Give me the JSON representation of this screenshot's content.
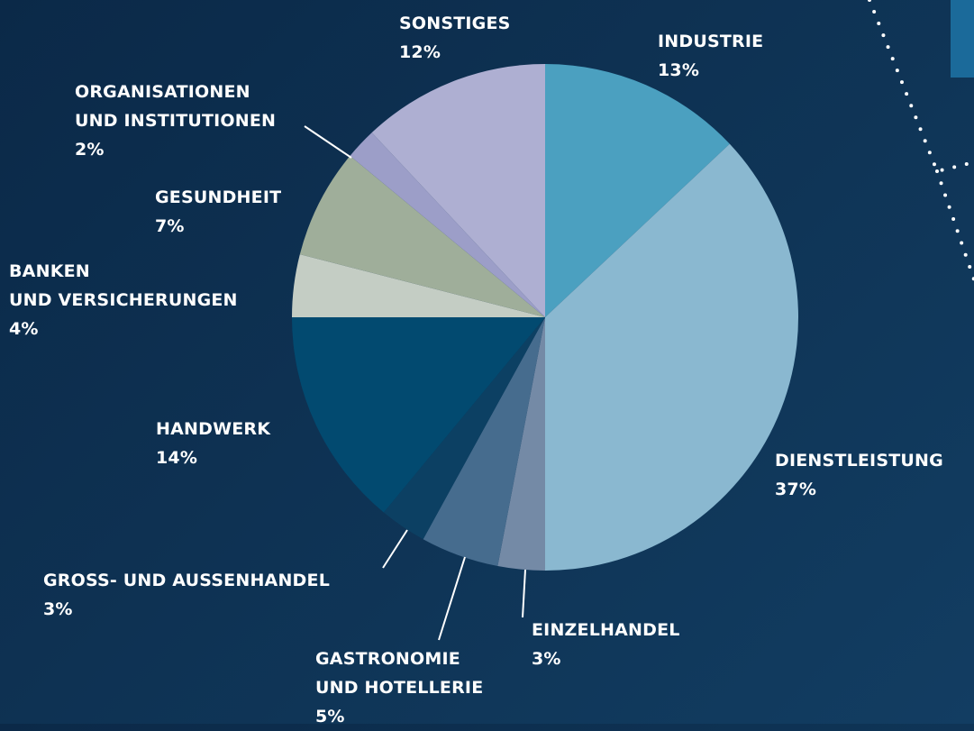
{
  "chart_data": {
    "type": "pie",
    "categories": [
      "INDUSTRIE",
      "DIENSTLEISTUNG",
      "EINZELHANDEL",
      "GASTRONOMIE\nUND HOTELLERIE",
      "GROSS- UND AUSSENHANDEL",
      "HANDWERK",
      "BANKEN\nUND VERSICHERUNGEN",
      "GESUNDHEIT",
      "ORGANISATIONEN\nUND INSTITUTIONEN",
      "SONSTIGES"
    ],
    "values": [
      13,
      37,
      3,
      5,
      3,
      14,
      4,
      7,
      2,
      12
    ],
    "value_labels": [
      "13%",
      "37%",
      "3%",
      "5%",
      "3%",
      "14%",
      "4%",
      "7%",
      "2%",
      "12%"
    ],
    "colors": [
      "#4ba0c0",
      "#8ab8d0",
      "#748aa6",
      "#466c8e",
      "#0c4063",
      "#024a70",
      "#c4cdc4",
      "#9fae9a",
      "#9c9ec8",
      "#aeafd2"
    ]
  }
}
